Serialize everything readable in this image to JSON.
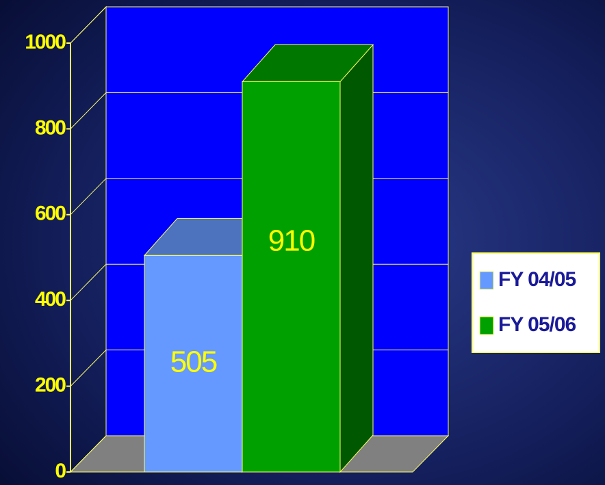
{
  "chart_data": {
    "type": "bar3d",
    "categories": [
      null
    ],
    "series": [
      {
        "name": "FY 04/05",
        "color": "#6699ff",
        "values": [
          505
        ]
      },
      {
        "name": "FY 05/06",
        "color": "#00a000",
        "values": [
          910
        ]
      }
    ],
    "ylim": [
      0,
      1000
    ],
    "yticks": [
      0,
      200,
      400,
      600,
      800,
      1000
    ],
    "grid": true
  }
}
